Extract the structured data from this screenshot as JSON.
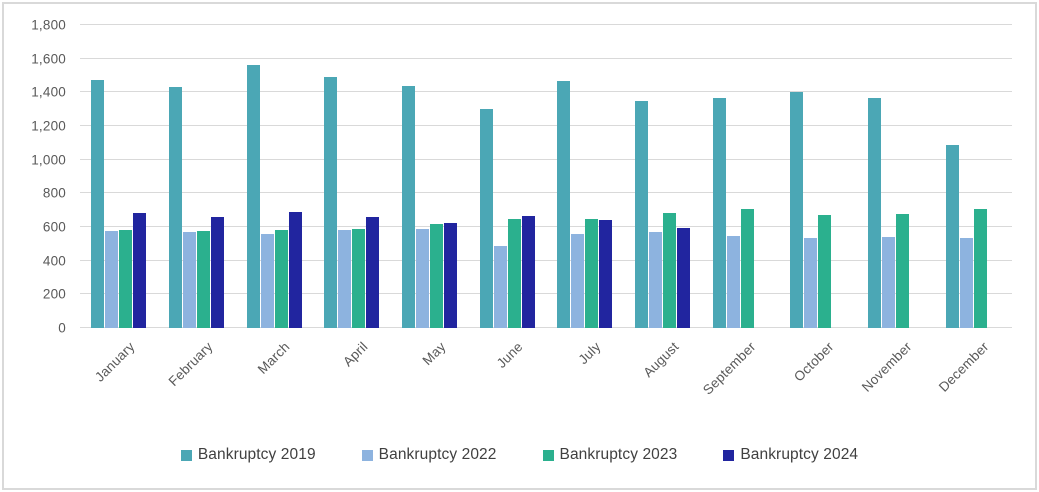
{
  "chart_data": {
    "type": "bar",
    "title": "",
    "xlabel": "",
    "ylabel": "",
    "ylim": [
      0,
      1800
    ],
    "ytick_step": 200,
    "ytick_labels": [
      "0",
      "200",
      "400",
      "600",
      "800",
      "1,000",
      "1,200",
      "1,400",
      "1,600",
      "1,800"
    ],
    "grid": "horizontal",
    "gridline_color": "#d9d9d9",
    "axis_label_color": "#595959",
    "legend_position": "bottom-center",
    "categories": [
      "January",
      "February",
      "March",
      "April",
      "May",
      "June",
      "July",
      "August",
      "September",
      "October",
      "November",
      "December"
    ],
    "series": [
      {
        "name": "Bankruptcy 2019",
        "color": "#4BA7B5",
        "values": [
          1475,
          1430,
          1560,
          1490,
          1440,
          1300,
          1465,
          1350,
          1365,
          1405,
          1365,
          1090
        ]
      },
      {
        "name": "Bankruptcy 2022",
        "color": "#8DB3DF",
        "values": [
          575,
          570,
          560,
          580,
          590,
          490,
          560,
          570,
          545,
          535,
          540,
          535
        ]
      },
      {
        "name": "Bankruptcy 2023",
        "color": "#2BB08E",
        "values": [
          585,
          575,
          580,
          590,
          620,
          650,
          645,
          685,
          705,
          670,
          675,
          705
        ]
      },
      {
        "name": "Bankruptcy 2024",
        "color": "#21259F",
        "values": [
          685,
          660,
          690,
          660,
          625,
          665,
          640,
          595,
          null,
          null,
          null,
          null
        ]
      }
    ]
  }
}
